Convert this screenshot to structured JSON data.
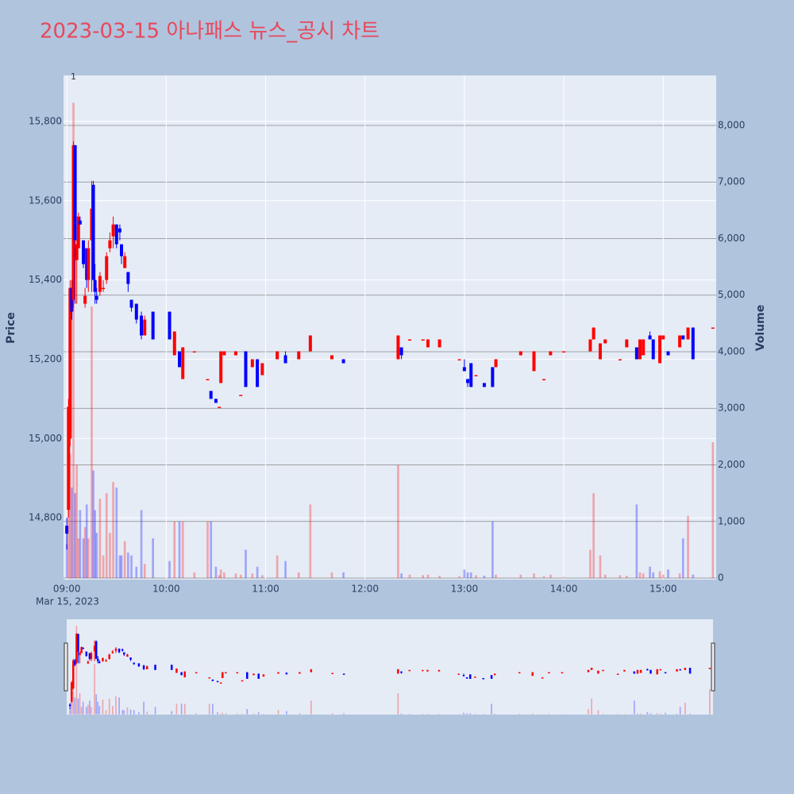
{
  "chart_data": {
    "type": "candlestick",
    "title": "2023-03-15 아나패스 뉴스_공시 차트",
    "x": [
      "09:00",
      "09:01",
      "09:02",
      "09:03",
      "09:04",
      "09:05",
      "09:06",
      "09:07",
      "09:08",
      "09:10",
      "09:11",
      "09:12",
      "09:13",
      "09:15",
      "09:16",
      "09:17",
      "09:18",
      "09:20",
      "09:22",
      "09:24",
      "09:26",
      "09:28",
      "09:30",
      "09:32",
      "09:33",
      "09:35",
      "09:37",
      "09:39",
      "09:42",
      "09:45",
      "09:47",
      "09:52",
      "10:02",
      "10:05",
      "10:08",
      "10:10",
      "10:17",
      "10:25",
      "10:27",
      "10:30",
      "10:32",
      "10:33",
      "10:35",
      "10:42",
      "10:45",
      "10:48",
      "10:52",
      "10:55",
      "10:58",
      "11:07",
      "11:12",
      "11:20",
      "11:27",
      "11:40",
      "11:47",
      "12:20",
      "12:22",
      "12:27",
      "12:35",
      "12:38",
      "12:45",
      "12:57",
      "13:00",
      "13:02",
      "13:04",
      "13:07",
      "13:12",
      "13:17",
      "13:19",
      "13:34",
      "13:42",
      "13:48",
      "13:52",
      "14:00",
      "14:16",
      "14:18",
      "14:22",
      "14:25",
      "14:34",
      "14:38",
      "14:44",
      "14:46",
      "14:48",
      "14:52",
      "14:54",
      "14:58",
      "15:00",
      "15:03",
      "15:10",
      "15:12",
      "15:15",
      "15:18",
      "15:30"
    ],
    "open": [
      14780,
      14820,
      15000,
      15380,
      15350,
      15740,
      15450,
      15480,
      15550,
      15500,
      15340,
      15480,
      15400,
      15500,
      15640,
      15400,
      15360,
      15370,
      15380,
      15400,
      15480,
      15510,
      15540,
      15530,
      15490,
      15430,
      15420,
      15350,
      15340,
      15310,
      15260,
      15320,
      15320,
      15210,
      15220,
      15150,
      15220,
      15150,
      15120,
      15100,
      15080,
      15140,
      15210,
      15210,
      15110,
      15220,
      15180,
      15200,
      15160,
      15200,
      15210,
      15200,
      15220,
      15200,
      15200,
      15200,
      15230,
      15250,
      15250,
      15230,
      15230,
      15200,
      15180,
      15150,
      15190,
      15160,
      15140,
      15180,
      15180,
      15210,
      15170,
      15150,
      15210,
      15220,
      15220,
      15250,
      15200,
      15240,
      15200,
      15230,
      15230,
      15200,
      15210,
      15260,
      15250,
      15190,
      15250,
      15220,
      15230,
      15260,
      15250,
      15280,
      15280
    ],
    "high": [
      14800,
      15100,
      15400,
      15400,
      15750,
      15740,
      15500,
      15570,
      15560,
      15500,
      15380,
      15480,
      15500,
      15650,
      15650,
      15440,
      15380,
      15420,
      15400,
      15470,
      15520,
      15560,
      15540,
      15540,
      15490,
      15470,
      15420,
      15350,
      15340,
      15320,
      15310,
      15320,
      15320,
      15270,
      15220,
      15230,
      15220,
      15150,
      15120,
      15100,
      15080,
      15220,
      15220,
      15220,
      15110,
      15220,
      15200,
      15200,
      15190,
      15220,
      15220,
      15220,
      15260,
      15210,
      15200,
      15260,
      15230,
      15250,
      15250,
      15250,
      15250,
      15200,
      15200,
      15150,
      15190,
      15160,
      15140,
      15180,
      15200,
      15220,
      15220,
      15150,
      15220,
      15220,
      15250,
      15280,
      15240,
      15250,
      15200,
      15250,
      15230,
      15250,
      15250,
      15270,
      15250,
      15260,
      15260,
      15220,
      15260,
      15260,
      15280,
      15280,
      15280
    ],
    "low": [
      14720,
      14800,
      14980,
      15300,
      15330,
      15340,
      15340,
      15480,
      15540,
      15430,
      15330,
      15380,
      15370,
      15370,
      15400,
      15340,
      15340,
      15360,
      15370,
      15390,
      15470,
      15480,
      15480,
      15500,
      15440,
      15430,
      15370,
      15320,
      15290,
      15250,
      15260,
      15250,
      15250,
      15210,
      15180,
      15150,
      15220,
      15150,
      15100,
      15090,
      15080,
      15140,
      15210,
      15210,
      15110,
      15130,
      15180,
      15130,
      15160,
      15200,
      15190,
      15200,
      15220,
      15200,
      15190,
      15200,
      15200,
      15250,
      15250,
      15230,
      15230,
      15200,
      15170,
      15130,
      15130,
      15160,
      15130,
      15130,
      15180,
      15210,
      15170,
      15150,
      15210,
      15220,
      15220,
      15250,
      15200,
      15240,
      15200,
      15230,
      15200,
      15200,
      15210,
      15250,
      15200,
      15190,
      15250,
      15210,
      15230,
      15250,
      15250,
      15200,
      15280
    ],
    "close": [
      14760,
      15080,
      15380,
      15320,
      15740,
      15500,
      15490,
      15560,
      15540,
      15440,
      15360,
      15400,
      15480,
      15580,
      15400,
      15370,
      15350,
      15410,
      15380,
      15460,
      15500,
      15540,
      15490,
      15520,
      15460,
      15460,
      15390,
      15330,
      15300,
      15260,
      15300,
      15250,
      15250,
      15270,
      15180,
      15230,
      15220,
      15150,
      15100,
      15090,
      15080,
      15220,
      15220,
      15220,
      15110,
      15130,
      15200,
      15130,
      15190,
      15220,
      15190,
      15220,
      15260,
      15210,
      15190,
      15260,
      15210,
      15250,
      15250,
      15250,
      15250,
      15200,
      15170,
      15140,
      15130,
      15160,
      15130,
      15130,
      15200,
      15220,
      15220,
      15150,
      15220,
      15220,
      15250,
      15280,
      15240,
      15250,
      15200,
      15250,
      15200,
      15250,
      15250,
      15250,
      15200,
      15260,
      15260,
      15210,
      15260,
      15250,
      15280,
      15200,
      15280
    ],
    "volume": [
      600,
      1800,
      2200,
      1600,
      8400,
      1500,
      2000,
      700,
      1200,
      700,
      900,
      1300,
      700,
      4800,
      1900,
      1200,
      800,
      1400,
      400,
      1500,
      800,
      1700,
      1600,
      400,
      400,
      650,
      450,
      400,
      200,
      1200,
      250,
      700,
      300,
      1000,
      1000,
      1000,
      100,
      1000,
      1000,
      200,
      50,
      150,
      100,
      80,
      60,
      500,
      80,
      200,
      50,
      400,
      300,
      100,
      1300,
      100,
      100,
      2000,
      80,
      60,
      50,
      60,
      40,
      30,
      150,
      100,
      100,
      50,
      40,
      1000,
      60,
      60,
      80,
      30,
      60,
      20,
      500,
      1500,
      400,
      60,
      50,
      40,
      1300,
      100,
      80,
      200,
      100,
      120,
      60,
      150,
      80,
      700,
      1100,
      60,
      2400
    ],
    "increasing_color": "#ff0000",
    "decreasing_color": "#0000ff",
    "xlim": [
      "08:58",
      "15:32"
    ],
    "xticks": [
      "09:00",
      "10:00",
      "11:00",
      "12:00",
      "13:00",
      "14:00",
      "15:00"
    ],
    "x_date_label": "Mar 15, 2023",
    "ylabel": "Price",
    "y2label": "Volume",
    "ylim": [
      14644,
      15916
    ],
    "yticks": [
      {
        "value": 14800,
        "label": "14,800"
      },
      {
        "value": 15000,
        "label": "15,000"
      },
      {
        "value": 15200,
        "label": "15,200"
      },
      {
        "value": 15400,
        "label": "15,400"
      },
      {
        "value": 15600,
        "label": "15,600"
      },
      {
        "value": 15800,
        "label": "15,800"
      }
    ],
    "y2lim": [
      -28,
      8884
    ],
    "y2ticks": [
      0,
      {
        "value": 1000,
        "label": "1,000"
      },
      {
        "value": 2000,
        "label": "2,000"
      },
      {
        "value": 3000,
        "label": "3,000"
      },
      {
        "value": 4000,
        "label": "4,000"
      },
      {
        "value": 5000,
        "label": "5,000"
      },
      {
        "value": 6000,
        "label": "6,000"
      },
      {
        "value": 7000,
        "label": "7,000"
      },
      {
        "value": 8000,
        "label": "8,000"
      }
    ],
    "annotations": [
      {
        "x": "09:04",
        "text": "1"
      }
    ],
    "grid": true,
    "rangeslider": true
  }
}
